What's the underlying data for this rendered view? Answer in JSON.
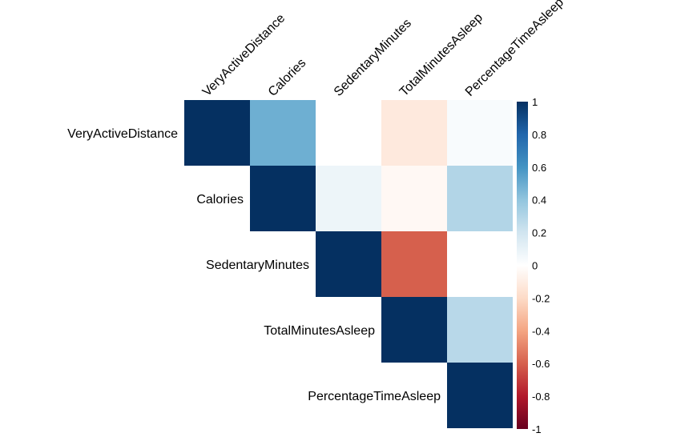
{
  "chart_data": {
    "type": "heatmap",
    "variables": [
      "VeryActiveDistance",
      "Calories",
      "SedentaryMinutes",
      "TotalMinutesAsleep",
      "PercentageTimeAsleep"
    ],
    "layout": "upper-triangle",
    "matrix": [
      [
        1.0,
        0.49,
        0.0,
        -0.12,
        0.03
      ],
      [
        null,
        1.0,
        0.08,
        -0.04,
        0.3
      ],
      [
        null,
        null,
        1.0,
        -0.6,
        0.0
      ],
      [
        null,
        null,
        null,
        1.0,
        0.28
      ],
      [
        null,
        null,
        null,
        null,
        1.0
      ]
    ],
    "colorbar": {
      "range": [
        -1,
        1
      ],
      "ticks": [
        1,
        0.8,
        0.6,
        0.4,
        0.2,
        0,
        -0.2,
        -0.4,
        -0.6,
        -0.8,
        -1
      ],
      "tick_labels": [
        "1",
        "0.8",
        "0.6",
        "0.4",
        "0.2",
        "0",
        "-0.2",
        "-0.4",
        "-0.6",
        "-0.8",
        "-1"
      ],
      "colors": [
        "#67001F",
        "#B2182B",
        "#D6604D",
        "#F4A582",
        "#FDDBC7",
        "#FFFFFF",
        "#D1E5F0",
        "#92C5DE",
        "#4393C3",
        "#2166AC",
        "#053061"
      ]
    },
    "grid": false,
    "legend_position": "right"
  }
}
